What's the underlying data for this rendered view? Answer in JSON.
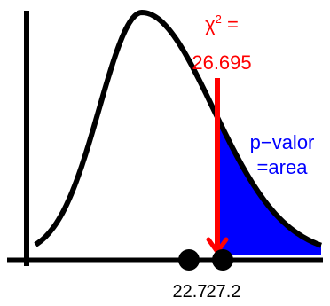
{
  "statistic": {
    "symbol": "χ",
    "exponent": "2",
    "equals": " =",
    "value": "26.695"
  },
  "area_label": {
    "line1": "p−valor",
    "line2": "=area"
  },
  "marks": [
    "22.7",
    "27.2"
  ],
  "colors": {
    "curve": "#000000",
    "area": "#0000ff",
    "statistic": "#ff0000"
  }
}
